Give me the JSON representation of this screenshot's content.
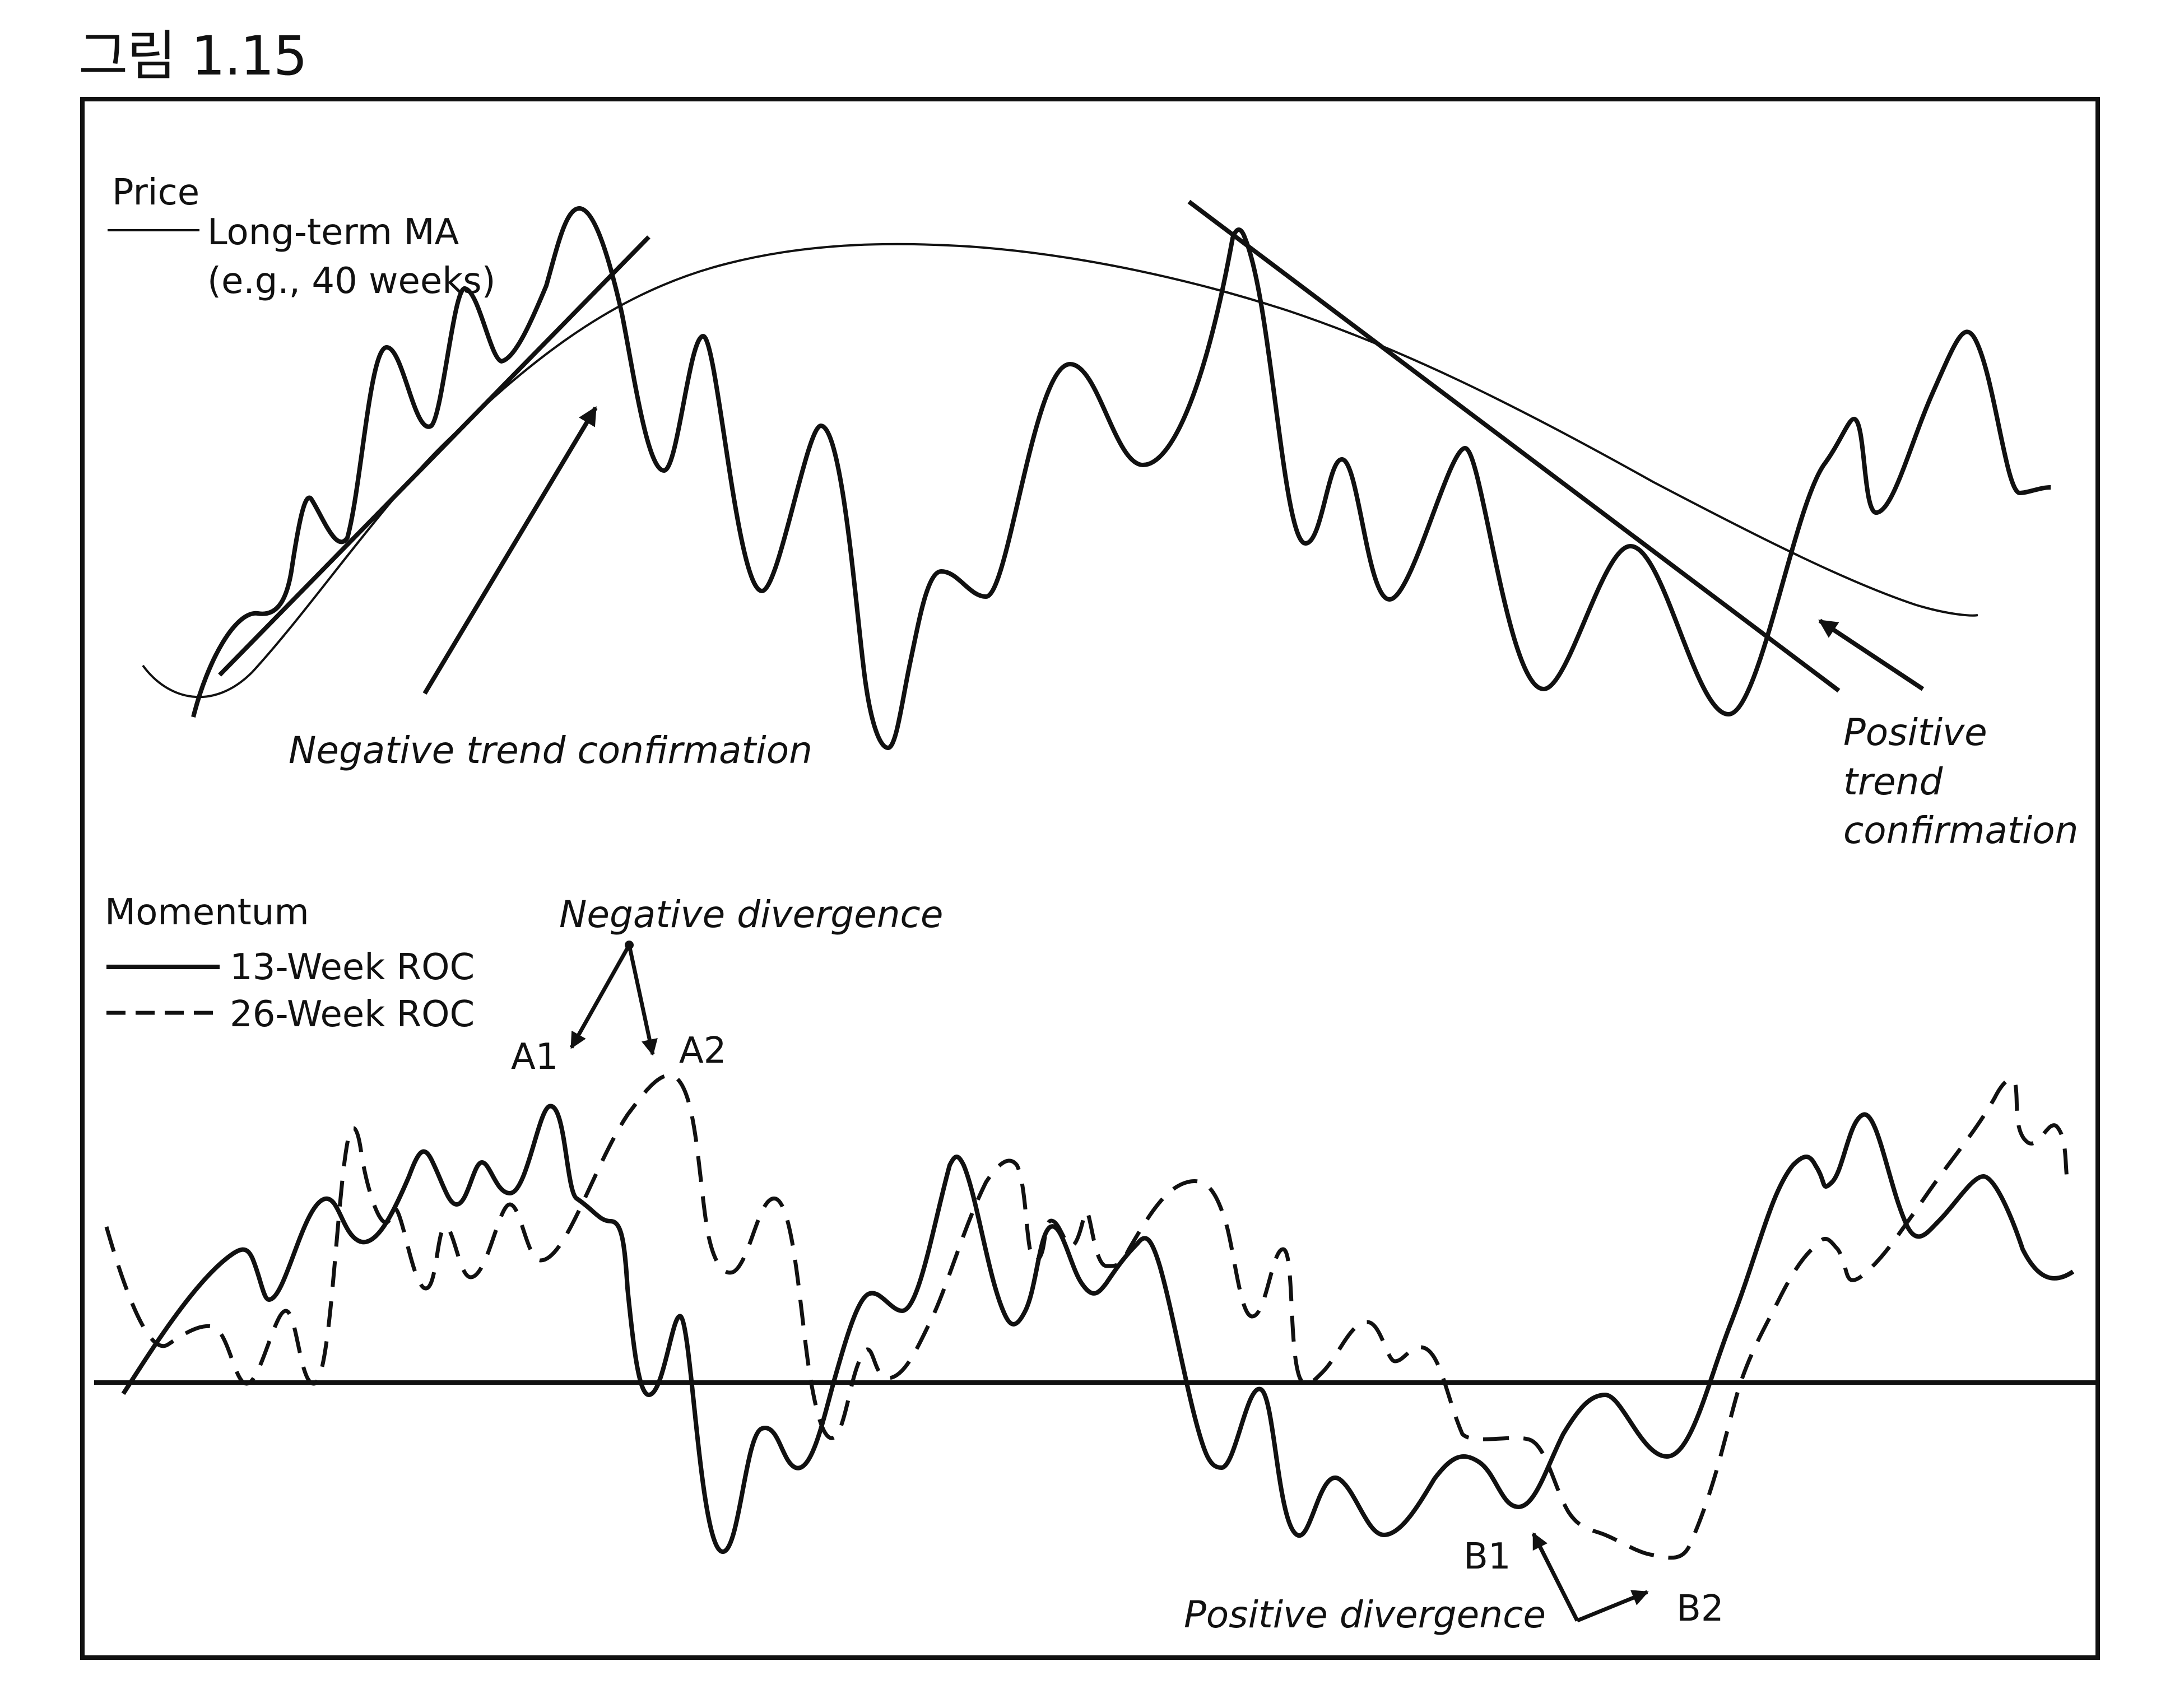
{
  "figure_title": "그림 1.15",
  "price_panel": {
    "legend_price": "Price",
    "legend_ma_line1": "Long-term MA",
    "legend_ma_line2": "(e.g., 40 weeks)",
    "annotation_negative_trend": "Negative trend confirmation",
    "annotation_positive_trend_line1": "Positive",
    "annotation_positive_trend_line2": "trend",
    "annotation_positive_trend_line3": "confirmation"
  },
  "momentum_panel": {
    "legend_title": "Momentum",
    "legend_13": "13-Week ROC",
    "legend_26": "26-Week ROC",
    "annotation_negative_divergence": "Negative divergence",
    "annotation_positive_divergence": "Positive divergence",
    "label_a1": "A1",
    "label_a2": "A2",
    "label_b1": "B1",
    "label_b2": "B2"
  },
  "colors": {
    "ink": "#111111",
    "background": "#ffffff"
  }
}
